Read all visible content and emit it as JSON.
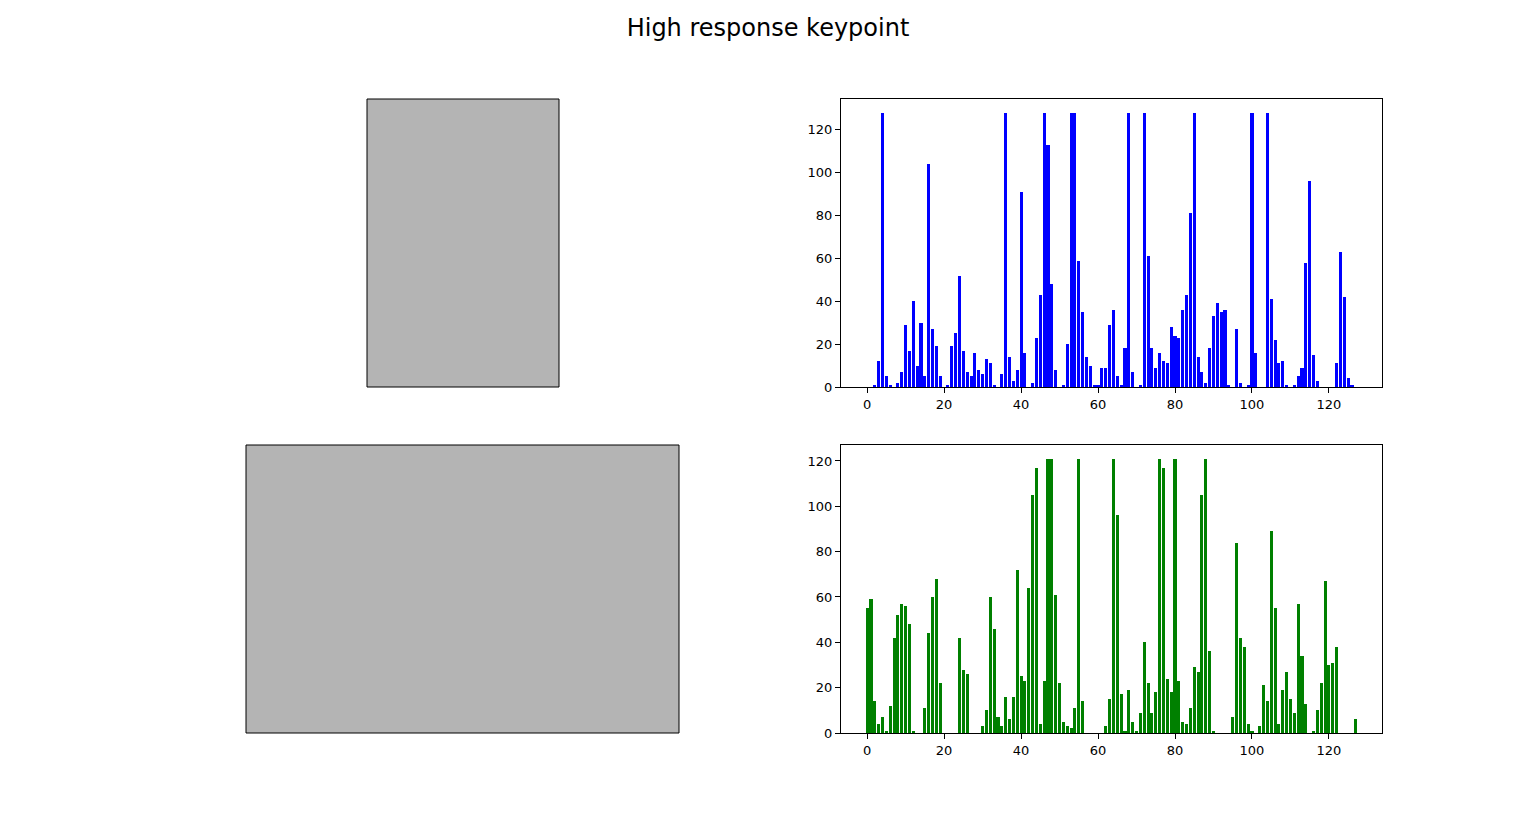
{
  "title": "High response keypoint",
  "chart_data": [
    {
      "type": "bar",
      "color": "#0000ff",
      "x": [
        0,
        1,
        2,
        3,
        4,
        5,
        6,
        7,
        8,
        9,
        10,
        11,
        12,
        13,
        14,
        15,
        16,
        17,
        18,
        19,
        20,
        21,
        22,
        23,
        24,
        25,
        26,
        27,
        28,
        29,
        30,
        31,
        32,
        33,
        34,
        35,
        36,
        37,
        38,
        39,
        40,
        41,
        42,
        43,
        44,
        45,
        46,
        47,
        48,
        49,
        50,
        51,
        52,
        53,
        54,
        55,
        56,
        57,
        58,
        59,
        60,
        61,
        62,
        63,
        64,
        65,
        66,
        67,
        68,
        69,
        70,
        71,
        72,
        73,
        74,
        75,
        76,
        77,
        78,
        79,
        80,
        81,
        82,
        83,
        84,
        85,
        86,
        87,
        88,
        89,
        90,
        91,
        92,
        93,
        94,
        95,
        96,
        97,
        98,
        99,
        100,
        101,
        102,
        103,
        104,
        105,
        106,
        107,
        108,
        109,
        110,
        111,
        112,
        113,
        114,
        115,
        116,
        117,
        118,
        119,
        120,
        121,
        122,
        123,
        124,
        125,
        126,
        127
      ],
      "values": [
        0,
        0,
        1,
        12,
        128,
        5,
        1,
        0,
        2,
        7,
        29,
        17,
        40,
        10,
        30,
        5,
        104,
        27,
        19,
        5,
        0,
        1,
        19,
        25,
        52,
        17,
        7,
        5,
        16,
        8,
        6,
        13,
        11,
        1,
        0,
        6,
        128,
        14,
        3,
        8,
        91,
        16,
        0,
        2,
        23,
        43,
        128,
        113,
        48,
        8,
        0,
        1,
        20,
        128,
        128,
        59,
        35,
        14,
        10,
        1,
        1,
        9,
        9,
        29,
        36,
        5,
        1,
        18,
        128,
        7,
        0,
        1,
        128,
        61,
        18,
        9,
        16,
        12,
        11,
        28,
        24,
        23,
        36,
        43,
        81,
        128,
        14,
        7,
        2,
        18,
        33,
        39,
        35,
        36,
        1,
        0,
        27,
        2,
        0,
        1,
        128,
        16,
        0,
        0,
        128,
        41,
        22,
        11,
        12,
        1,
        0,
        1,
        5,
        9,
        58,
        96,
        15,
        3,
        0,
        0,
        0,
        0,
        11,
        63,
        42,
        4,
        1,
        0
      ],
      "xlim": [
        -6.79,
        133.79
      ],
      "ylim": [
        0,
        134.4
      ],
      "xticks": [
        0,
        20,
        40,
        60,
        80,
        100,
        120
      ],
      "yticks": [
        0,
        20,
        40,
        60,
        80,
        100,
        120
      ]
    },
    {
      "type": "bar",
      "color": "#008000",
      "x": [
        0,
        1,
        2,
        3,
        4,
        5,
        6,
        7,
        8,
        9,
        10,
        11,
        12,
        13,
        14,
        15,
        16,
        17,
        18,
        19,
        20,
        21,
        22,
        23,
        24,
        25,
        26,
        27,
        28,
        29,
        30,
        31,
        32,
        33,
        34,
        35,
        36,
        37,
        38,
        39,
        40,
        41,
        42,
        43,
        44,
        45,
        46,
        47,
        48,
        49,
        50,
        51,
        52,
        53,
        54,
        55,
        56,
        57,
        58,
        59,
        60,
        61,
        62,
        63,
        64,
        65,
        66,
        67,
        68,
        69,
        70,
        71,
        72,
        73,
        74,
        75,
        76,
        77,
        78,
        79,
        80,
        81,
        82,
        83,
        84,
        85,
        86,
        87,
        88,
        89,
        90,
        91,
        92,
        93,
        94,
        95,
        96,
        97,
        98,
        99,
        100,
        101,
        102,
        103,
        104,
        105,
        106,
        107,
        108,
        109,
        110,
        111,
        112,
        113,
        114,
        115,
        116,
        117,
        118,
        119,
        120,
        121,
        122,
        123,
        124,
        125,
        126,
        127
      ],
      "values": [
        55,
        59,
        14,
        4,
        7,
        1,
        12,
        42,
        52,
        57,
        56,
        48,
        1,
        0,
        0,
        11,
        44,
        60,
        68,
        22,
        0,
        0,
        0,
        0,
        42,
        28,
        26,
        0,
        0,
        0,
        3,
        10,
        60,
        46,
        7,
        3,
        16,
        6,
        16,
        72,
        25,
        23,
        64,
        105,
        117,
        4,
        23,
        121,
        121,
        61,
        22,
        5,
        3,
        2,
        11,
        121,
        14,
        0,
        0,
        0,
        0,
        0,
        3,
        15,
        121,
        96,
        17,
        1,
        19,
        5,
        1,
        9,
        40,
        22,
        9,
        18,
        121,
        117,
        24,
        18,
        121,
        23,
        5,
        4,
        11,
        29,
        27,
        105,
        121,
        36,
        1,
        0,
        0,
        0,
        0,
        7,
        84,
        42,
        38,
        4,
        1,
        0,
        3,
        21,
        14,
        89,
        55,
        4,
        19,
        27,
        15,
        9,
        57,
        34,
        13,
        0,
        1,
        10,
        22,
        67,
        30,
        31,
        38,
        0,
        0,
        0,
        0,
        6
      ],
      "xlim": [
        -6.79,
        133.79
      ],
      "ylim": [
        0,
        127.05
      ],
      "xticks": [
        0,
        20,
        40,
        60,
        80,
        100,
        120
      ],
      "yticks": [
        0,
        20,
        40,
        60,
        80,
        100,
        120
      ]
    }
  ]
}
